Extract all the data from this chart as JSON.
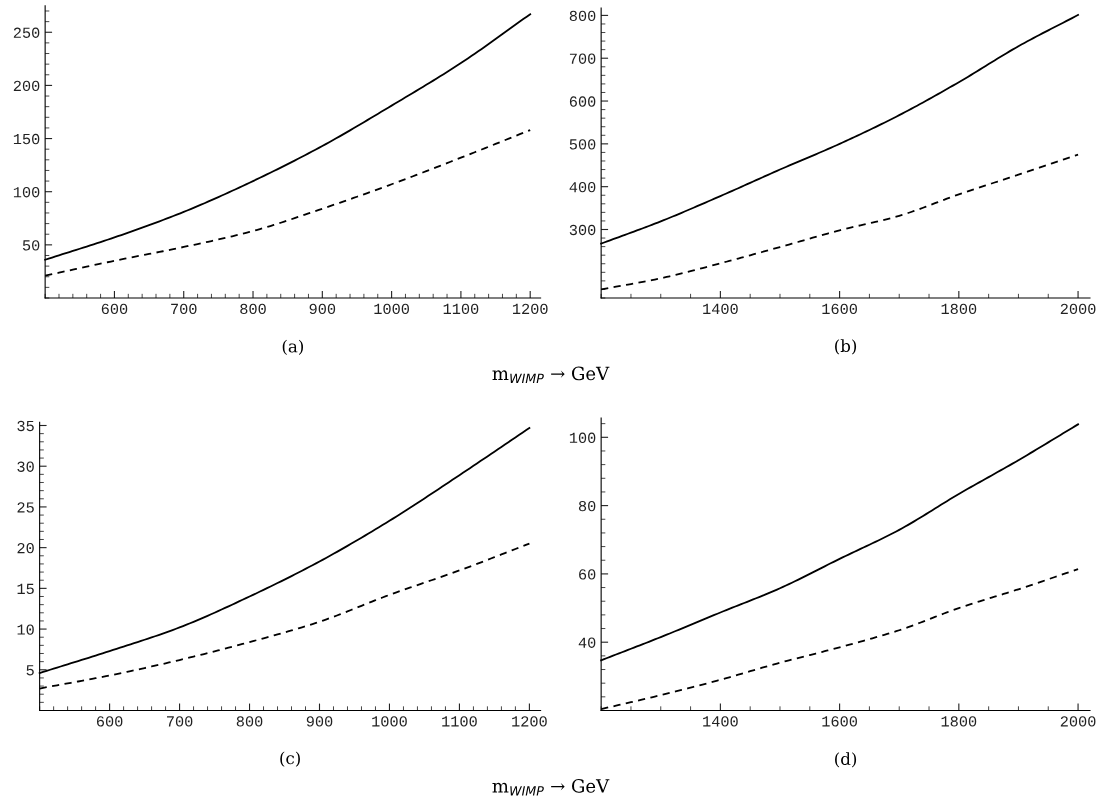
{
  "chart_data": [
    {
      "type": "line",
      "annotations": [
        "(a)"
      ],
      "xlabel": "m$_{WIMP}$ → GeV",
      "x": [
        500,
        600,
        700,
        800,
        900,
        1000,
        1100,
        1200
      ],
      "xlim": [
        500,
        1215
      ],
      "ylim": [
        0,
        275
      ],
      "xticks": [
        600,
        700,
        800,
        900,
        1000,
        1100,
        1200
      ],
      "yticks": [
        50,
        100,
        150,
        200,
        250
      ],
      "grid": false,
      "legend": false,
      "marker": "none",
      "series": [
        {
          "color": "#000000",
          "line_style": "solid",
          "values": [
            36,
            57,
            81,
            110,
            143,
            181,
            221,
            267
          ]
        },
        {
          "color": "#000000",
          "line_style": "dashed",
          "values": [
            21,
            35,
            48,
            63,
            84,
            107,
            132,
            158
          ]
        }
      ]
    },
    {
      "type": "line",
      "annotations": [
        "(b)"
      ],
      "x": [
        1200,
        1300,
        1400,
        1500,
        1600,
        1700,
        1800,
        1900,
        2000
      ],
      "xlim": [
        1200,
        2020
      ],
      "ylim": [
        140,
        817
      ],
      "xticks": [
        1400,
        1600,
        1800,
        2000
      ],
      "yticks": [
        300,
        400,
        500,
        600,
        700,
        800
      ],
      "grid": false,
      "legend": false,
      "marker": "none",
      "series": [
        {
          "color": "#000000",
          "line_style": "solid",
          "values": [
            267,
            319,
            378,
            440,
            500,
            567,
            644,
            728,
            801
          ]
        },
        {
          "color": "#000000",
          "line_style": "dashed",
          "values": [
            160,
            186,
            221,
            259,
            298,
            332,
            382,
            428,
            475
          ]
        }
      ]
    },
    {
      "type": "line",
      "annotations": [
        "(c)"
      ],
      "xlabel": "m$_{WIMP}$ → GeV",
      "x": [
        500,
        600,
        700,
        800,
        900,
        1000,
        1100,
        1200
      ],
      "xlim": [
        500,
        1216
      ],
      "ylim": [
        0,
        35.4
      ],
      "xticks": [
        600,
        700,
        800,
        900,
        1000,
        1100,
        1200
      ],
      "yticks": [
        5,
        10,
        15,
        20,
        25,
        30,
        35
      ],
      "grid": false,
      "legend": false,
      "marker": "none",
      "series": [
        {
          "color": "#000000",
          "line_style": "solid",
          "values": [
            4.6,
            7.3,
            10.2,
            14.0,
            18.3,
            23.3,
            28.9,
            34.7
          ]
        },
        {
          "color": "#000000",
          "line_style": "dashed",
          "values": [
            2.7,
            4.3,
            6.2,
            8.4,
            10.9,
            14.2,
            17.2,
            20.5
          ]
        }
      ]
    },
    {
      "type": "line",
      "annotations": [
        "(d)"
      ],
      "x": [
        1200,
        1300,
        1400,
        1500,
        1600,
        1700,
        1800,
        1900,
        2000
      ],
      "xlim": [
        1200,
        2020
      ],
      "ylim": [
        20,
        105.6
      ],
      "xticks": [
        1400,
        1600,
        1800,
        2000
      ],
      "yticks": [
        40,
        60,
        80,
        100
      ],
      "grid": false,
      "legend": false,
      "marker": "none",
      "series": [
        {
          "color": "#000000",
          "line_style": "solid",
          "values": [
            34.7,
            41.5,
            48.7,
            55.8,
            64.4,
            72.9,
            83.4,
            93.3,
            103.8
          ]
        },
        {
          "color": "#000000",
          "line_style": "dashed",
          "values": [
            20.4,
            24.5,
            29,
            34,
            38.5,
            43.5,
            50,
            55.5,
            61.4
          ]
        }
      ]
    }
  ]
}
